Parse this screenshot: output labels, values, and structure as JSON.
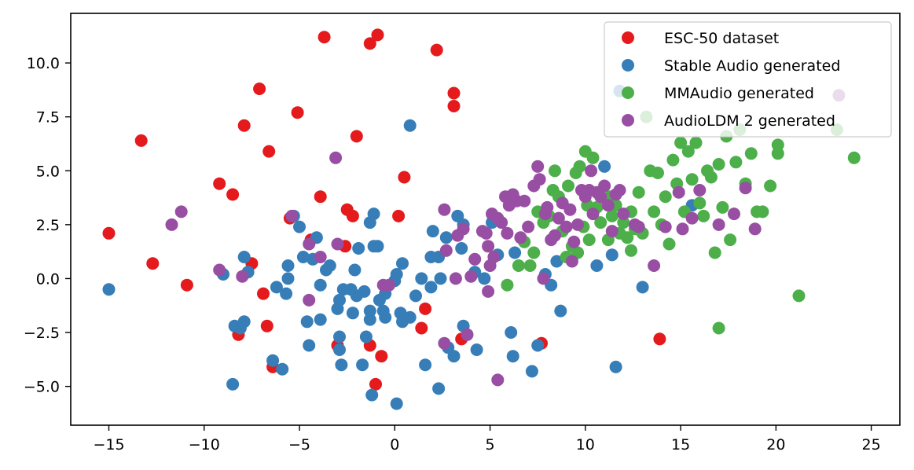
{
  "chart_data": {
    "type": "scatter",
    "title": "",
    "xlabel": "",
    "ylabel": "",
    "xlim": [
      -17,
      26.5
    ],
    "ylim": [
      -6.8,
      12.3
    ],
    "xticks": [
      -15,
      -10,
      -5,
      0,
      5,
      10,
      15,
      20,
      25
    ],
    "xtick_labels": [
      "−15",
      "−10",
      "−5",
      "0",
      "5",
      "10",
      "15",
      "20",
      "25"
    ],
    "yticks": [
      -5.0,
      -2.5,
      0.0,
      2.5,
      5.0,
      7.5,
      10.0
    ],
    "ytick_labels": [
      "−5.0",
      "−2.5",
      "0.0",
      "2.5",
      "5.0",
      "7.5",
      "10.0"
    ],
    "grid": false,
    "legend_position": "top-right",
    "series": [
      {
        "name": "ESC-50 dataset",
        "color": "#e41a1c",
        "points": [
          [
            -15.0,
            2.1
          ],
          [
            -13.3,
            6.4
          ],
          [
            -12.7,
            0.7
          ],
          [
            -10.9,
            -0.3
          ],
          [
            -9.2,
            4.4
          ],
          [
            -8.5,
            3.9
          ],
          [
            -8.2,
            -2.6
          ],
          [
            -7.9,
            7.1
          ],
          [
            -7.5,
            0.7
          ],
          [
            -7.1,
            8.8
          ],
          [
            -6.9,
            -0.7
          ],
          [
            -6.7,
            -2.2
          ],
          [
            -6.6,
            5.9
          ],
          [
            -6.4,
            -4.1
          ],
          [
            -5.5,
            2.8
          ],
          [
            -5.1,
            7.7
          ],
          [
            -4.4,
            1.8
          ],
          [
            -3.9,
            3.8
          ],
          [
            -3.7,
            11.2
          ],
          [
            -3.0,
            -3.1
          ],
          [
            -2.6,
            1.5
          ],
          [
            -2.5,
            3.2
          ],
          [
            -2.2,
            2.9
          ],
          [
            -2.0,
            6.6
          ],
          [
            -1.3,
            10.9
          ],
          [
            -1.3,
            -3.1
          ],
          [
            -1.0,
            -4.9
          ],
          [
            -0.9,
            11.3
          ],
          [
            -0.7,
            -3.6
          ],
          [
            0.2,
            2.9
          ],
          [
            0.5,
            4.7
          ],
          [
            1.6,
            -1.4
          ],
          [
            1.4,
            -2.3
          ],
          [
            2.2,
            10.6
          ],
          [
            3.1,
            8.6
          ],
          [
            3.1,
            8.0
          ],
          [
            3.5,
            -2.8
          ],
          [
            7.7,
            -3.0
          ],
          [
            13.9,
            -2.8
          ]
        ]
      },
      {
        "name": "Stable Audio generated",
        "color": "#377eb8",
        "points": [
          [
            -15.0,
            -0.5
          ],
          [
            -9.0,
            0.2
          ],
          [
            -8.5,
            -4.9
          ],
          [
            -8.4,
            -2.2
          ],
          [
            -8.1,
            -2.3
          ],
          [
            -7.9,
            1.0
          ],
          [
            -7.9,
            -2.0
          ],
          [
            -7.7,
            0.3
          ],
          [
            -6.4,
            -3.8
          ],
          [
            -6.2,
            -0.4
          ],
          [
            -5.9,
            -4.2
          ],
          [
            -5.7,
            -0.7
          ],
          [
            -5.6,
            0.0
          ],
          [
            -5.6,
            0.6
          ],
          [
            -5.3,
            2.9
          ],
          [
            -5.0,
            2.4
          ],
          [
            -4.8,
            1.0
          ],
          [
            -4.6,
            -2.0
          ],
          [
            -4.5,
            -3.1
          ],
          [
            -4.3,
            0.9
          ],
          [
            -4.1,
            1.9
          ],
          [
            -3.9,
            -1.9
          ],
          [
            -3.9,
            -0.3
          ],
          [
            -3.6,
            0.4
          ],
          [
            -3.4,
            0.6
          ],
          [
            -3.0,
            -1.4
          ],
          [
            -2.9,
            -1.0
          ],
          [
            -2.9,
            -2.7
          ],
          [
            -2.9,
            -3.3
          ],
          [
            -2.8,
            -4.0
          ],
          [
            -2.7,
            -0.5
          ],
          [
            -2.3,
            -0.5
          ],
          [
            -2.2,
            -1.6
          ],
          [
            -2.1,
            0.4
          ],
          [
            -2.0,
            -0.8
          ],
          [
            -1.9,
            1.4
          ],
          [
            -1.7,
            -4.0
          ],
          [
            -1.6,
            -0.6
          ],
          [
            -1.5,
            -2.7
          ],
          [
            -1.3,
            2.6
          ],
          [
            -1.3,
            -1.9
          ],
          [
            -1.3,
            -1.5
          ],
          [
            -1.2,
            -5.4
          ],
          [
            -1.1,
            3.0
          ],
          [
            -1.1,
            1.5
          ],
          [
            -0.9,
            1.5
          ],
          [
            -0.8,
            -1.0
          ],
          [
            -0.6,
            -1.5
          ],
          [
            -0.5,
            -1.8
          ],
          [
            -0.5,
            -0.7
          ],
          [
            0.0,
            -0.1
          ],
          [
            0.1,
            0.2
          ],
          [
            0.1,
            -5.8
          ],
          [
            0.3,
            -1.6
          ],
          [
            0.4,
            -2.0
          ],
          [
            0.4,
            0.7
          ],
          [
            0.8,
            -1.8
          ],
          [
            0.8,
            7.1
          ],
          [
            1.1,
            -0.8
          ],
          [
            1.4,
            0.0
          ],
          [
            1.6,
            -4.0
          ],
          [
            1.9,
            1.0
          ],
          [
            1.9,
            -0.4
          ],
          [
            2.0,
            2.2
          ],
          [
            2.3,
            1.0
          ],
          [
            2.3,
            -5.1
          ],
          [
            2.4,
            0.0
          ],
          [
            2.7,
            1.9
          ],
          [
            2.8,
            -3.2
          ],
          [
            3.1,
            -3.6
          ],
          [
            3.3,
            2.9
          ],
          [
            3.5,
            1.4
          ],
          [
            3.6,
            -2.2
          ],
          [
            3.6,
            2.5
          ],
          [
            4.2,
            0.3
          ],
          [
            4.3,
            -3.3
          ],
          [
            4.7,
            0.0
          ],
          [
            5.4,
            1.1
          ],
          [
            5.1,
            2.6
          ],
          [
            6.1,
            -2.5
          ],
          [
            6.2,
            -3.6
          ],
          [
            6.3,
            1.2
          ],
          [
            7.2,
            -4.3
          ],
          [
            7.5,
            -3.1
          ],
          [
            7.9,
            0.2
          ],
          [
            8.2,
            -0.3
          ],
          [
            8.5,
            0.8
          ],
          [
            8.7,
            -1.5
          ],
          [
            10.6,
            0.6
          ],
          [
            11.0,
            5.2
          ],
          [
            11.4,
            1.1
          ],
          [
            11.6,
            -4.1
          ],
          [
            11.8,
            8.7
          ],
          [
            13.0,
            -0.4
          ],
          [
            15.6,
            3.4
          ]
        ]
      },
      {
        "name": "MMAudio generated",
        "color": "#4daf4a",
        "points": [
          [
            5.9,
            -0.3
          ],
          [
            6.5,
            0.6
          ],
          [
            6.8,
            1.7
          ],
          [
            7.1,
            0.6
          ],
          [
            7.3,
            1.2
          ],
          [
            7.5,
            3.1
          ],
          [
            7.8,
            2.6
          ],
          [
            8.1,
            2.9
          ],
          [
            8.3,
            4.1
          ],
          [
            8.4,
            5.0
          ],
          [
            8.6,
            3.8
          ],
          [
            8.8,
            2.2
          ],
          [
            9.0,
            1.0
          ],
          [
            9.1,
            4.3
          ],
          [
            9.3,
            1.5
          ],
          [
            9.5,
            4.9
          ],
          [
            9.7,
            5.2
          ],
          [
            9.9,
            2.4
          ],
          [
            10.0,
            5.9
          ],
          [
            10.2,
            1.8
          ],
          [
            10.4,
            5.6
          ],
          [
            10.6,
            3.3
          ],
          [
            10.8,
            2.6
          ],
          [
            11.0,
            3.5
          ],
          [
            11.2,
            1.8
          ],
          [
            11.4,
            2.9
          ],
          [
            11.6,
            3.4
          ],
          [
            11.8,
            2.1
          ],
          [
            12.0,
            2.6
          ],
          [
            12.2,
            1.9
          ],
          [
            12.4,
            3.1
          ],
          [
            12.6,
            2.3
          ],
          [
            12.8,
            4.0
          ],
          [
            13.0,
            2.1
          ],
          [
            13.2,
            7.5
          ],
          [
            13.4,
            5.0
          ],
          [
            13.6,
            3.1
          ],
          [
            13.8,
            4.9
          ],
          [
            14.0,
            2.5
          ],
          [
            14.2,
            3.8
          ],
          [
            14.4,
            1.6
          ],
          [
            14.6,
            5.5
          ],
          [
            14.8,
            4.4
          ],
          [
            15.0,
            6.3
          ],
          [
            15.2,
            3.1
          ],
          [
            15.4,
            5.9
          ],
          [
            15.6,
            4.6
          ],
          [
            15.8,
            6.3
          ],
          [
            16.0,
            3.5
          ],
          [
            16.2,
            2.9
          ],
          [
            16.4,
            5.0
          ],
          [
            16.6,
            4.7
          ],
          [
            16.8,
            1.2
          ],
          [
            17.0,
            5.3
          ],
          [
            17.2,
            3.3
          ],
          [
            17.4,
            6.6
          ],
          [
            17.6,
            1.8
          ],
          [
            17.9,
            5.4
          ],
          [
            18.1,
            6.9
          ],
          [
            18.4,
            4.4
          ],
          [
            18.7,
            5.8
          ],
          [
            19.0,
            3.1
          ],
          [
            19.3,
            3.1
          ],
          [
            19.7,
            4.3
          ],
          [
            20.1,
            6.2
          ],
          [
            20.1,
            5.8
          ],
          [
            21.2,
            -0.8
          ],
          [
            17.0,
            -2.3
          ],
          [
            23.2,
            6.9
          ],
          [
            24.1,
            5.6
          ],
          [
            12.4,
            1.3
          ],
          [
            10.1,
            3.4
          ],
          [
            11.3,
            3.8
          ],
          [
            9.6,
            1.2
          ]
        ]
      },
      {
        "name": "AudioLDM 2 generated",
        "color": "#984ea3",
        "points": [
          [
            -11.7,
            2.5
          ],
          [
            -11.2,
            3.1
          ],
          [
            -9.2,
            0.4
          ],
          [
            -8.0,
            0.1
          ],
          [
            -5.4,
            2.9
          ],
          [
            -4.5,
            1.6
          ],
          [
            -4.5,
            -1.0
          ],
          [
            -3.9,
            1.0
          ],
          [
            -3.1,
            5.6
          ],
          [
            -3.0,
            1.6
          ],
          [
            -0.6,
            -0.3
          ],
          [
            -0.3,
            -0.3
          ],
          [
            2.6,
            3.2
          ],
          [
            2.7,
            1.3
          ],
          [
            2.6,
            -3.0
          ],
          [
            3.2,
            0.0
          ],
          [
            3.3,
            2.0
          ],
          [
            3.6,
            2.3
          ],
          [
            3.8,
            -2.6
          ],
          [
            4.0,
            0.1
          ],
          [
            4.2,
            0.9
          ],
          [
            4.6,
            2.2
          ],
          [
            4.8,
            2.1
          ],
          [
            4.9,
            -0.6
          ],
          [
            4.9,
            1.5
          ],
          [
            5.0,
            0.6
          ],
          [
            5.1,
            3.0
          ],
          [
            5.2,
            1.0
          ],
          [
            5.4,
            2.8
          ],
          [
            5.4,
            -4.7
          ],
          [
            5.6,
            2.6
          ],
          [
            5.8,
            3.8
          ],
          [
            5.9,
            2.1
          ],
          [
            6.0,
            3.4
          ],
          [
            6.2,
            3.9
          ],
          [
            6.4,
            3.6
          ],
          [
            6.6,
            1.9
          ],
          [
            6.8,
            3.6
          ],
          [
            7.0,
            2.4
          ],
          [
            7.3,
            4.3
          ],
          [
            7.5,
            5.2
          ],
          [
            7.6,
            4.6
          ],
          [
            7.8,
            -0.0
          ],
          [
            7.9,
            3.0
          ],
          [
            8.0,
            3.3
          ],
          [
            8.2,
            1.8
          ],
          [
            8.4,
            2.0
          ],
          [
            8.6,
            2.8
          ],
          [
            8.8,
            3.5
          ],
          [
            9.0,
            2.4
          ],
          [
            9.2,
            3.2
          ],
          [
            9.4,
            1.7
          ],
          [
            9.6,
            2.5
          ],
          [
            9.8,
            4.1
          ],
          [
            10.0,
            3.8
          ],
          [
            10.2,
            4.1
          ],
          [
            10.4,
            3.0
          ],
          [
            10.6,
            4.0
          ],
          [
            10.8,
            3.8
          ],
          [
            11.0,
            4.3
          ],
          [
            11.2,
            3.4
          ],
          [
            11.4,
            2.2
          ],
          [
            11.6,
            3.9
          ],
          [
            11.8,
            4.1
          ],
          [
            12.0,
            3.0
          ],
          [
            10.3,
            5.0
          ],
          [
            12.8,
            2.4
          ],
          [
            13.6,
            0.6
          ],
          [
            14.2,
            2.4
          ],
          [
            14.9,
            4.0
          ],
          [
            15.1,
            2.3
          ],
          [
            15.6,
            2.8
          ],
          [
            16.0,
            4.1
          ],
          [
            17.0,
            2.5
          ],
          [
            17.8,
            3.0
          ],
          [
            18.4,
            4.2
          ],
          [
            18.9,
            2.3
          ],
          [
            23.3,
            8.5
          ],
          [
            12.6,
            2.5
          ],
          [
            9.3,
            0.8
          ]
        ]
      }
    ]
  }
}
